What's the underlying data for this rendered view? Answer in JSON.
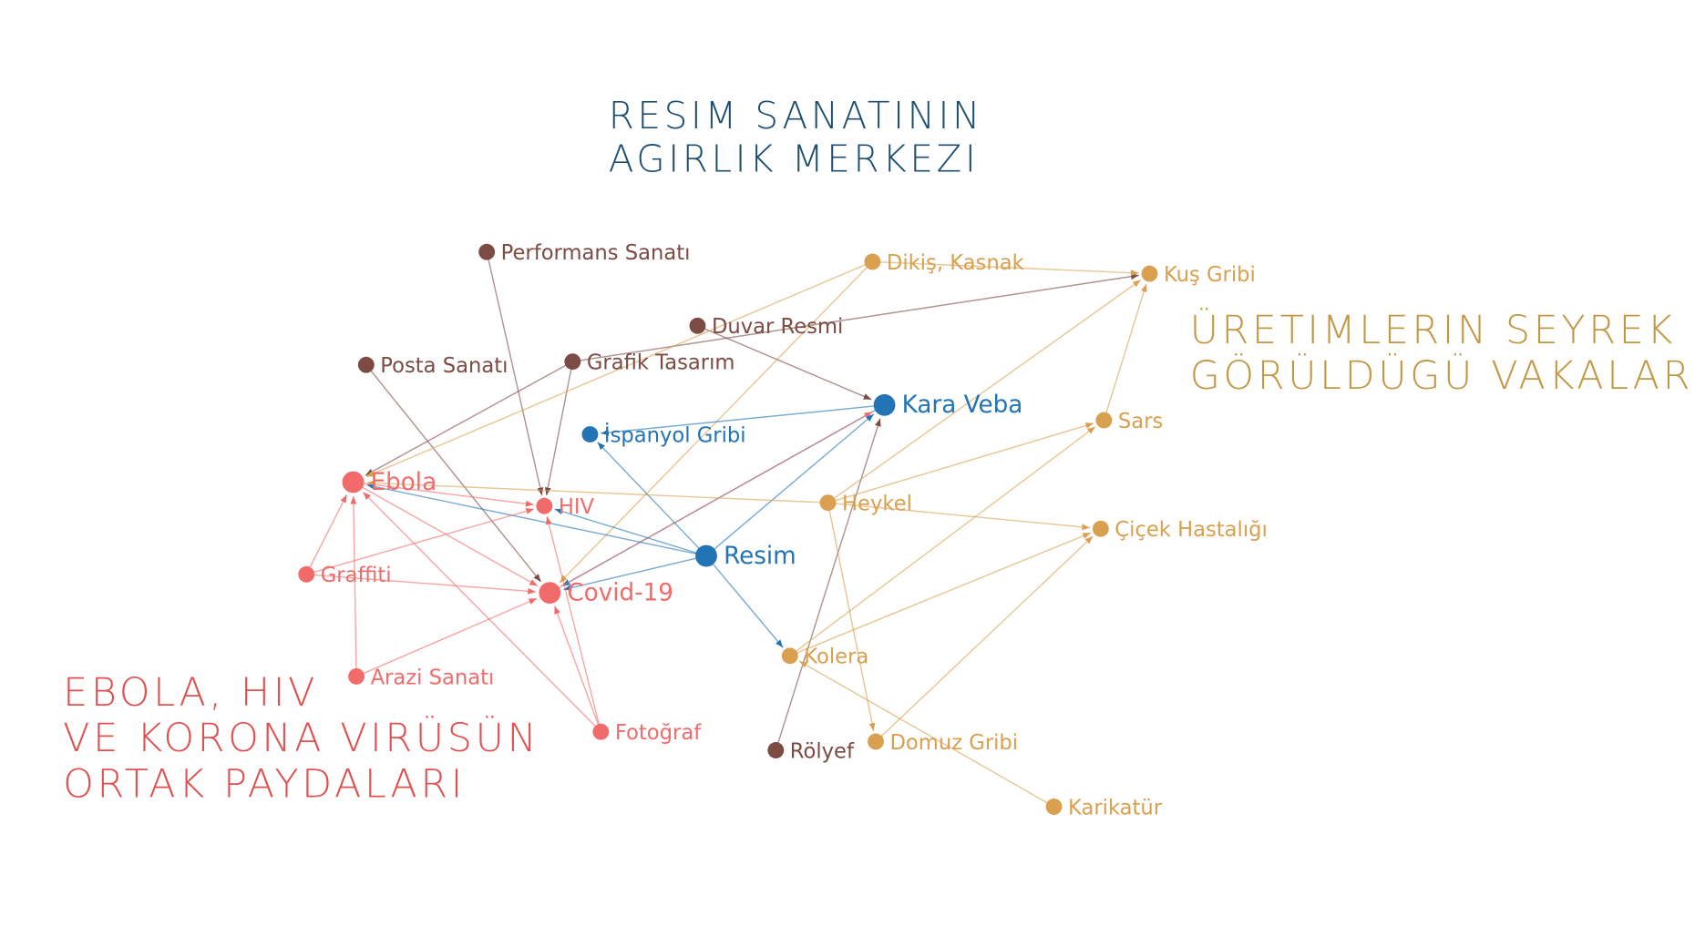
{
  "titles": {
    "center": [
      "RESIM SANATININ",
      "AGIRLIK MERKEZI"
    ],
    "right": [
      "ÜRETIMLERIN SEYREK",
      "GÖRÜLDÜGÜ VAKALAR"
    ],
    "left": [
      "EBOLA, HIV",
      "VE KORONA VIRÜSÜN",
      "ORTAK PAYDALARI"
    ]
  },
  "colors": {
    "art": "#7b4b44",
    "center": "#2274b5",
    "common": "#f26b6b",
    "rare": "#d9a04f",
    "title_center": "#1d4e70",
    "title_right": "#c29745",
    "title_left": "#e0504f"
  },
  "nodes": [
    {
      "id": "Performans Sanatı",
      "group": "art"
    },
    {
      "id": "Dikiş, Kasnak",
      "group": "rare"
    },
    {
      "id": "Kuş Gribi",
      "group": "rare"
    },
    {
      "id": "Duvar Resmi",
      "group": "art"
    },
    {
      "id": "Posta Sanatı",
      "group": "art"
    },
    {
      "id": "Grafik Tasarım",
      "group": "art"
    },
    {
      "id": "Kara Veba",
      "group": "center",
      "big": true
    },
    {
      "id": "Sars",
      "group": "rare"
    },
    {
      "id": "İspanyol Gribi",
      "group": "center"
    },
    {
      "id": "Ebola",
      "group": "common",
      "big": true
    },
    {
      "id": "HIV",
      "group": "common"
    },
    {
      "id": "Heykel",
      "group": "rare"
    },
    {
      "id": "Çiçek Hastalığı",
      "group": "rare"
    },
    {
      "id": "Resim",
      "group": "center",
      "big": true
    },
    {
      "id": "Graffiti",
      "group": "common"
    },
    {
      "id": "Covid-19",
      "group": "common",
      "big": true
    },
    {
      "id": "Kolera",
      "group": "rare"
    },
    {
      "id": "Arazi Sanatı",
      "group": "common"
    },
    {
      "id": "Fotoğraf",
      "group": "common"
    },
    {
      "id": "Rölyef",
      "group": "art"
    },
    {
      "id": "Domuz Gribi",
      "group": "rare"
    },
    {
      "id": "Karikatür",
      "group": "rare"
    }
  ],
  "edges": [
    [
      "Performans Sanatı",
      "HIV"
    ],
    [
      "Posta Sanatı",
      "Covid-19"
    ],
    [
      "Grafik Tasarım",
      "Ebola"
    ],
    [
      "Grafik Tasarım",
      "HIV"
    ],
    [
      "Grafik Tasarım",
      "Kuş Gribi"
    ],
    [
      "Duvar Resmi",
      "Kara Veba"
    ],
    [
      "Dikiş, Kasnak",
      "Kuş Gribi"
    ],
    [
      "Dikiş, Kasnak",
      "Ebola"
    ],
    [
      "Dikiş, Kasnak",
      "Covid-19"
    ],
    [
      "Kara Veba",
      "İspanyol Gribi"
    ],
    [
      "Kara Veba",
      "Covid-19"
    ],
    [
      "Covid-19",
      "Kara Veba"
    ],
    [
      "Resim",
      "İspanyol Gribi"
    ],
    [
      "Resim",
      "Kara Veba"
    ],
    [
      "Resim",
      "Kolera"
    ],
    [
      "Resim",
      "Covid-19"
    ],
    [
      "Resim",
      "Ebola"
    ],
    [
      "Resim",
      "HIV"
    ],
    [
      "Rölyef",
      "Kara Veba"
    ],
    [
      "Heykel",
      "Kuş Gribi"
    ],
    [
      "Heykel",
      "Sars"
    ],
    [
      "Heykel",
      "Çiçek Hastalığı"
    ],
    [
      "Heykel",
      "Domuz Gribi"
    ],
    [
      "Heykel",
      "Ebola"
    ],
    [
      "Sars",
      "Kuş Gribi"
    ],
    [
      "Kolera",
      "Sars"
    ],
    [
      "Kolera",
      "Çiçek Hastalığı"
    ],
    [
      "Karikatür",
      "Kolera"
    ],
    [
      "Domuz Gribi",
      "Çiçek Hastalığı"
    ],
    [
      "Ebola",
      "HIV"
    ],
    [
      "Ebola",
      "Covid-19"
    ],
    [
      "Graffiti",
      "Ebola"
    ],
    [
      "Graffiti",
      "HIV"
    ],
    [
      "Graffiti",
      "Covid-19"
    ],
    [
      "Arazi Sanatı",
      "Ebola"
    ],
    [
      "Arazi Sanatı",
      "Covid-19"
    ],
    [
      "Fotoğraf",
      "Ebola"
    ],
    [
      "Fotoğraf",
      "HIV"
    ],
    [
      "Fotoğraf",
      "Covid-19"
    ]
  ]
}
